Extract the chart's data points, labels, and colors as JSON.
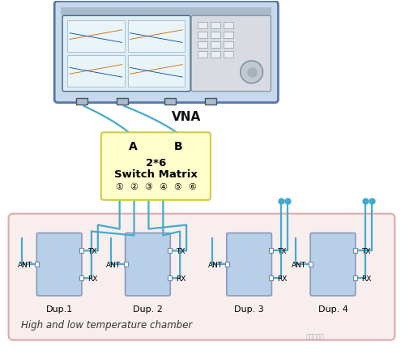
{
  "fig_width": 5.0,
  "fig_height": 4.32,
  "dpi": 100,
  "bg_color": "#ffffff",
  "vna_label": "VNA",
  "switch_matrix_line1": "2*6",
  "switch_matrix_line2": "Switch Matrix",
  "switch_matrix_AB": [
    "A",
    "B"
  ],
  "switch_numbers": [
    "①",
    "②",
    "③",
    "④",
    "⑤",
    "⑥"
  ],
  "switch_box_color": "#ffffcc",
  "switch_box_edge": "#cccc44",
  "chamber_color": "#f8eeee",
  "chamber_edge": "#ddaaaa",
  "chamber_label": "High and low temperature chamber",
  "dup_labels": [
    "Dup.1",
    "Dup. 2",
    "Dup. 3",
    "Dup. 4"
  ],
  "dup_box_color": "#b8cfe8",
  "dup_box_edge": "#8899bb",
  "cable_color": "#44aacc",
  "cable_lw": 1.6,
  "vna_body_color": "#c8d8ec",
  "vna_body_edge": "#6688aa",
  "vna_screen_color": "#ddeef4",
  "vna_panel_color": "#d8dce2",
  "vna_btn_color": "#eaeef2"
}
